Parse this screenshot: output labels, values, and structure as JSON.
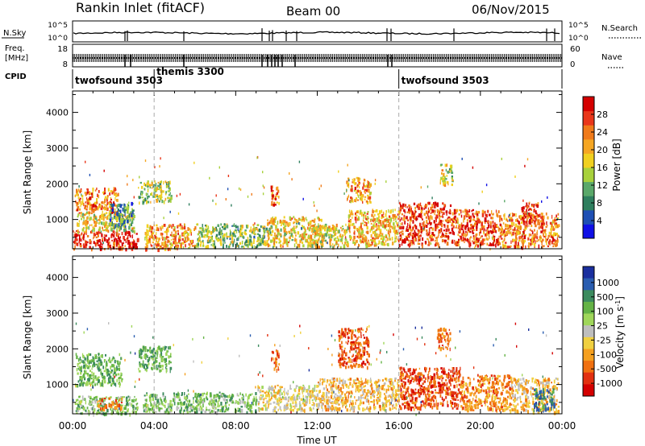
{
  "header": {
    "station": "Rankin Inlet (fitACF)",
    "beam": "Beam 00",
    "date": "06/Nov/2015"
  },
  "summary_panels": {
    "nsky": {
      "label": "N.Sky",
      "ticks": [
        "10^5",
        "10^0"
      ]
    },
    "nsearch": {
      "label": "N.Search",
      "ticks": [
        "10^5",
        "10^0"
      ]
    },
    "freq": {
      "label_line1": "Freq.",
      "label_line2": "[MHz]",
      "ticks": [
        "18",
        "8"
      ]
    },
    "nave": {
      "label": "Nave",
      "ticks": [
        "60",
        "0"
      ]
    },
    "cpid": {
      "label": "CPID",
      "segments": [
        {
          "name": "twofsound 3503",
          "start_hour": 0,
          "end_hour": 4
        },
        {
          "name": "themis 3300",
          "start_hour": 4,
          "end_hour": 16
        },
        {
          "name": "twofsound 3503",
          "start_hour": 16,
          "end_hour": 24
        }
      ]
    }
  },
  "chart_data": [
    {
      "type": "heatmap",
      "name": "power",
      "ylabel": "Slant Range [km]",
      "xlim": [
        0,
        24
      ],
      "ylim": [
        180,
        4600
      ],
      "yticks": [
        "1000",
        "2000",
        "3000",
        "4000"
      ],
      "colorbar": {
        "label": "Power [dB]",
        "ticks": [
          "4",
          "8",
          "12",
          "16",
          "20",
          "24",
          "28"
        ],
        "range": [
          0,
          32
        ],
        "colors": [
          "#1010e6",
          "#1e4fb4",
          "#2f7f5f",
          "#5aa86a",
          "#a8d13c",
          "#f0d020",
          "#f5a623",
          "#f07a1a",
          "#e9361a",
          "#d40000"
        ]
      },
      "echo_regions": [
        {
          "t0": 0.0,
          "t1": 3.2,
          "r0": 200,
          "r1": 700,
          "level": 0.95
        },
        {
          "t0": 0.2,
          "t1": 3.0,
          "r0": 700,
          "r1": 1200,
          "level": 0.55
        },
        {
          "t0": 0.1,
          "t1": 2.2,
          "r0": 1200,
          "r1": 1900,
          "level": 0.75
        },
        {
          "t0": 1.8,
          "t1": 3.0,
          "r0": 800,
          "r1": 1500,
          "level": 0.25
        },
        {
          "t0": 3.2,
          "t1": 4.8,
          "r0": 1500,
          "r1": 2100,
          "level": 0.45
        },
        {
          "t0": 3.5,
          "t1": 6.0,
          "r0": 200,
          "r1": 900,
          "level": 0.7
        },
        {
          "t0": 6.0,
          "t1": 9.5,
          "r0": 250,
          "r1": 900,
          "level": 0.4
        },
        {
          "t0": 9.5,
          "t1": 12.2,
          "r0": 300,
          "r1": 1100,
          "level": 0.6
        },
        {
          "t0": 9.7,
          "t1": 10.1,
          "r0": 1400,
          "r1": 2000,
          "level": 0.8
        },
        {
          "t0": 13.4,
          "t1": 14.6,
          "r0": 1500,
          "r1": 2200,
          "level": 0.7
        },
        {
          "t0": 11.5,
          "t1": 13.5,
          "r0": 250,
          "r1": 900,
          "level": 0.55
        },
        {
          "t0": 13.5,
          "t1": 16.0,
          "r0": 300,
          "r1": 1300,
          "level": 0.65
        },
        {
          "t0": 16.0,
          "t1": 18.5,
          "r0": 300,
          "r1": 1500,
          "level": 0.9
        },
        {
          "t0": 18.0,
          "t1": 18.6,
          "r0": 2000,
          "r1": 2600,
          "level": 0.5
        },
        {
          "t0": 18.5,
          "t1": 21.0,
          "r0": 300,
          "r1": 1300,
          "level": 0.85
        },
        {
          "t0": 21.0,
          "t1": 23.8,
          "r0": 250,
          "r1": 1200,
          "level": 0.75
        },
        {
          "t0": 22.0,
          "t1": 22.8,
          "r0": 900,
          "r1": 1500,
          "level": 0.95
        }
      ]
    },
    {
      "type": "heatmap",
      "name": "velocity",
      "ylabel": "Slant Range [km]",
      "xlabel": "Time UT",
      "xlim": [
        0,
        24
      ],
      "ylim": [
        180,
        4600
      ],
      "yticks": [
        "1000",
        "2000",
        "3000",
        "4000"
      ],
      "xticks": [
        "00:00",
        "04:00",
        "08:00",
        "12:00",
        "16:00",
        "20:00",
        "00:00"
      ],
      "colorbar": {
        "label": "Velocity [m s",
        "label_sup": "-1",
        "label_end": "]",
        "ticks": [
          "1000",
          "500",
          "100",
          "25",
          "-25",
          "-100",
          "-500",
          "-1000"
        ],
        "colors": [
          "#1a2f9e",
          "#2a5db0",
          "#3c8b5e",
          "#64b346",
          "#9fd65a",
          "#bebebe",
          "#f0d040",
          "#f5a020",
          "#f07010",
          "#e23010",
          "#d40000"
        ]
      },
      "echo_regions": [
        {
          "t0": 0.1,
          "t1": 3.2,
          "r0": 200,
          "r1": 700,
          "level": 0.35
        },
        {
          "t0": 0.1,
          "t1": 2.4,
          "r0": 1000,
          "r1": 1900,
          "level": 0.3
        },
        {
          "t0": 1.2,
          "t1": 2.4,
          "r0": 350,
          "r1": 650,
          "level": 0.8
        },
        {
          "t0": 3.2,
          "t1": 4.8,
          "r0": 1400,
          "r1": 2100,
          "level": 0.3
        },
        {
          "t0": 3.4,
          "t1": 9.0,
          "r0": 250,
          "r1": 800,
          "level": 0.35
        },
        {
          "t0": 9.0,
          "t1": 12.0,
          "r0": 300,
          "r1": 1000,
          "level": 0.55
        },
        {
          "t0": 9.7,
          "t1": 10.1,
          "r0": 1400,
          "r1": 2000,
          "level": 0.8
        },
        {
          "t0": 13.0,
          "t1": 14.5,
          "r0": 1500,
          "r1": 2600,
          "level": 0.85
        },
        {
          "t0": 12.0,
          "t1": 16.0,
          "r0": 300,
          "r1": 1200,
          "level": 0.65
        },
        {
          "t0": 16.0,
          "t1": 19.0,
          "r0": 350,
          "r1": 1500,
          "level": 0.85
        },
        {
          "t0": 17.8,
          "t1": 18.5,
          "r0": 2000,
          "r1": 2600,
          "level": 0.8
        },
        {
          "t0": 19.0,
          "t1": 21.5,
          "r0": 300,
          "r1": 1300,
          "level": 0.75
        },
        {
          "t0": 21.5,
          "t1": 23.8,
          "r0": 250,
          "r1": 1200,
          "level": 0.65
        },
        {
          "t0": 22.6,
          "t1": 23.6,
          "r0": 300,
          "r1": 900,
          "level": 0.15
        }
      ]
    }
  ]
}
